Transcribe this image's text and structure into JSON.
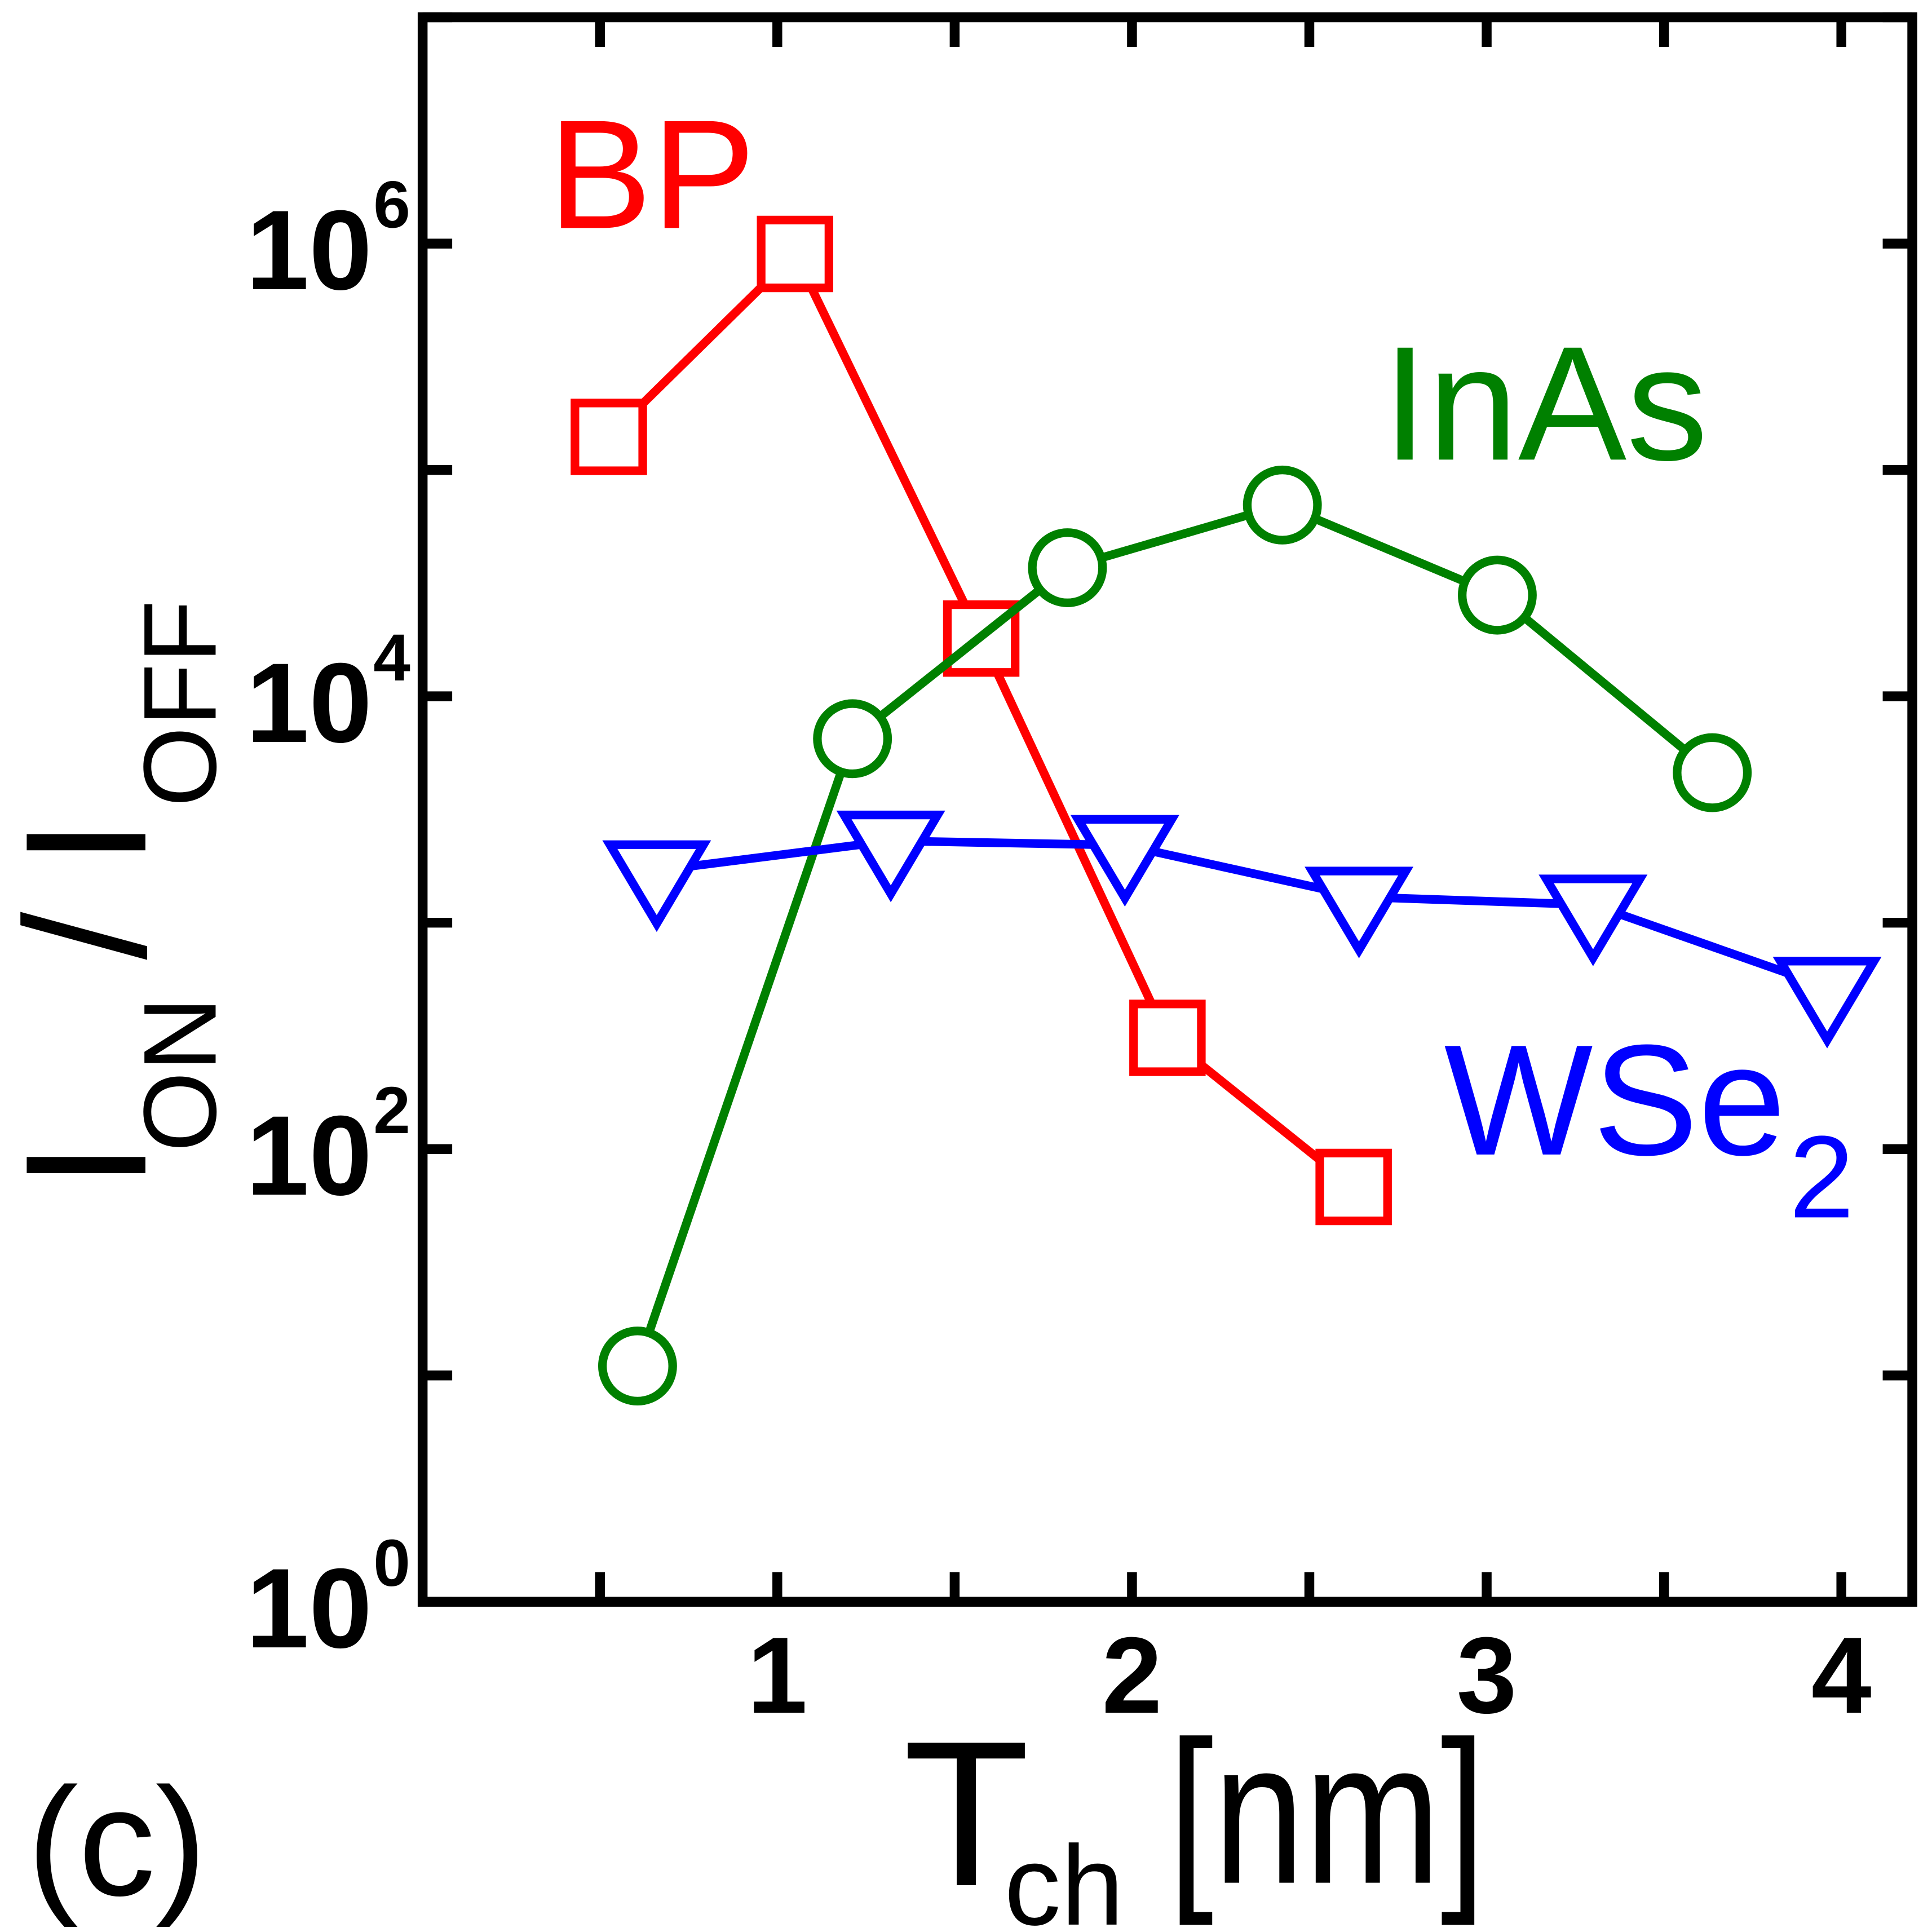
{
  "chart_data": {
    "type": "line",
    "panel_label": "(c)",
    "xlabel": {
      "main": "T",
      "sub": "ch",
      "unit": "[nm]"
    },
    "ylabel": {
      "main1": "I",
      "sub1": "ON",
      "sep": "/",
      "main2": "I",
      "sub2": "OFF"
    },
    "xlim": [
      0,
      4.2
    ],
    "ylim": [
      1,
      10000000
    ],
    "yscale": "log",
    "grid": false,
    "xticks": [
      0.5,
      1,
      1.5,
      2,
      2.5,
      3,
      3.5,
      4
    ],
    "xtick_label_values": [
      1,
      2,
      3,
      4
    ],
    "xtick_labels": [
      "1",
      "2",
      "3",
      "4"
    ],
    "yticks": [
      1,
      10,
      100,
      1000,
      10000,
      100000,
      1000000,
      10000000
    ],
    "ytick_labels": [
      {
        "value": 1,
        "base": "10",
        "exp": "0"
      },
      {
        "value": 100,
        "base": "10",
        "exp": "2"
      },
      {
        "value": 10000,
        "base": "10",
        "exp": "4"
      },
      {
        "value": 1000000,
        "base": "10",
        "exp": "6"
      }
    ],
    "series": [
      {
        "name": "BP",
        "color": "#FF0000",
        "marker": "square",
        "x": [
          0.525,
          1.05,
          1.575,
          2.1,
          2.625
        ],
        "y": [
          140000,
          900000,
          18000,
          310,
          68
        ]
      },
      {
        "name": "InAs",
        "color": "#008000",
        "marker": "circle",
        "x": [
          0.606,
          1.212,
          1.818,
          2.424,
          3.03,
          3.636
        ],
        "y": [
          11,
          6500,
          37000,
          70000,
          28000,
          4600
        ]
      },
      {
        "name": "WSe",
        "name_sub": "2",
        "color": "#0000FF",
        "marker": "triangle-down",
        "x": [
          0.66,
          1.32,
          1.98,
          2.64,
          3.3,
          3.96
        ],
        "y": [
          1700,
          2300,
          2200,
          1300,
          1200,
          520
        ]
      }
    ]
  }
}
